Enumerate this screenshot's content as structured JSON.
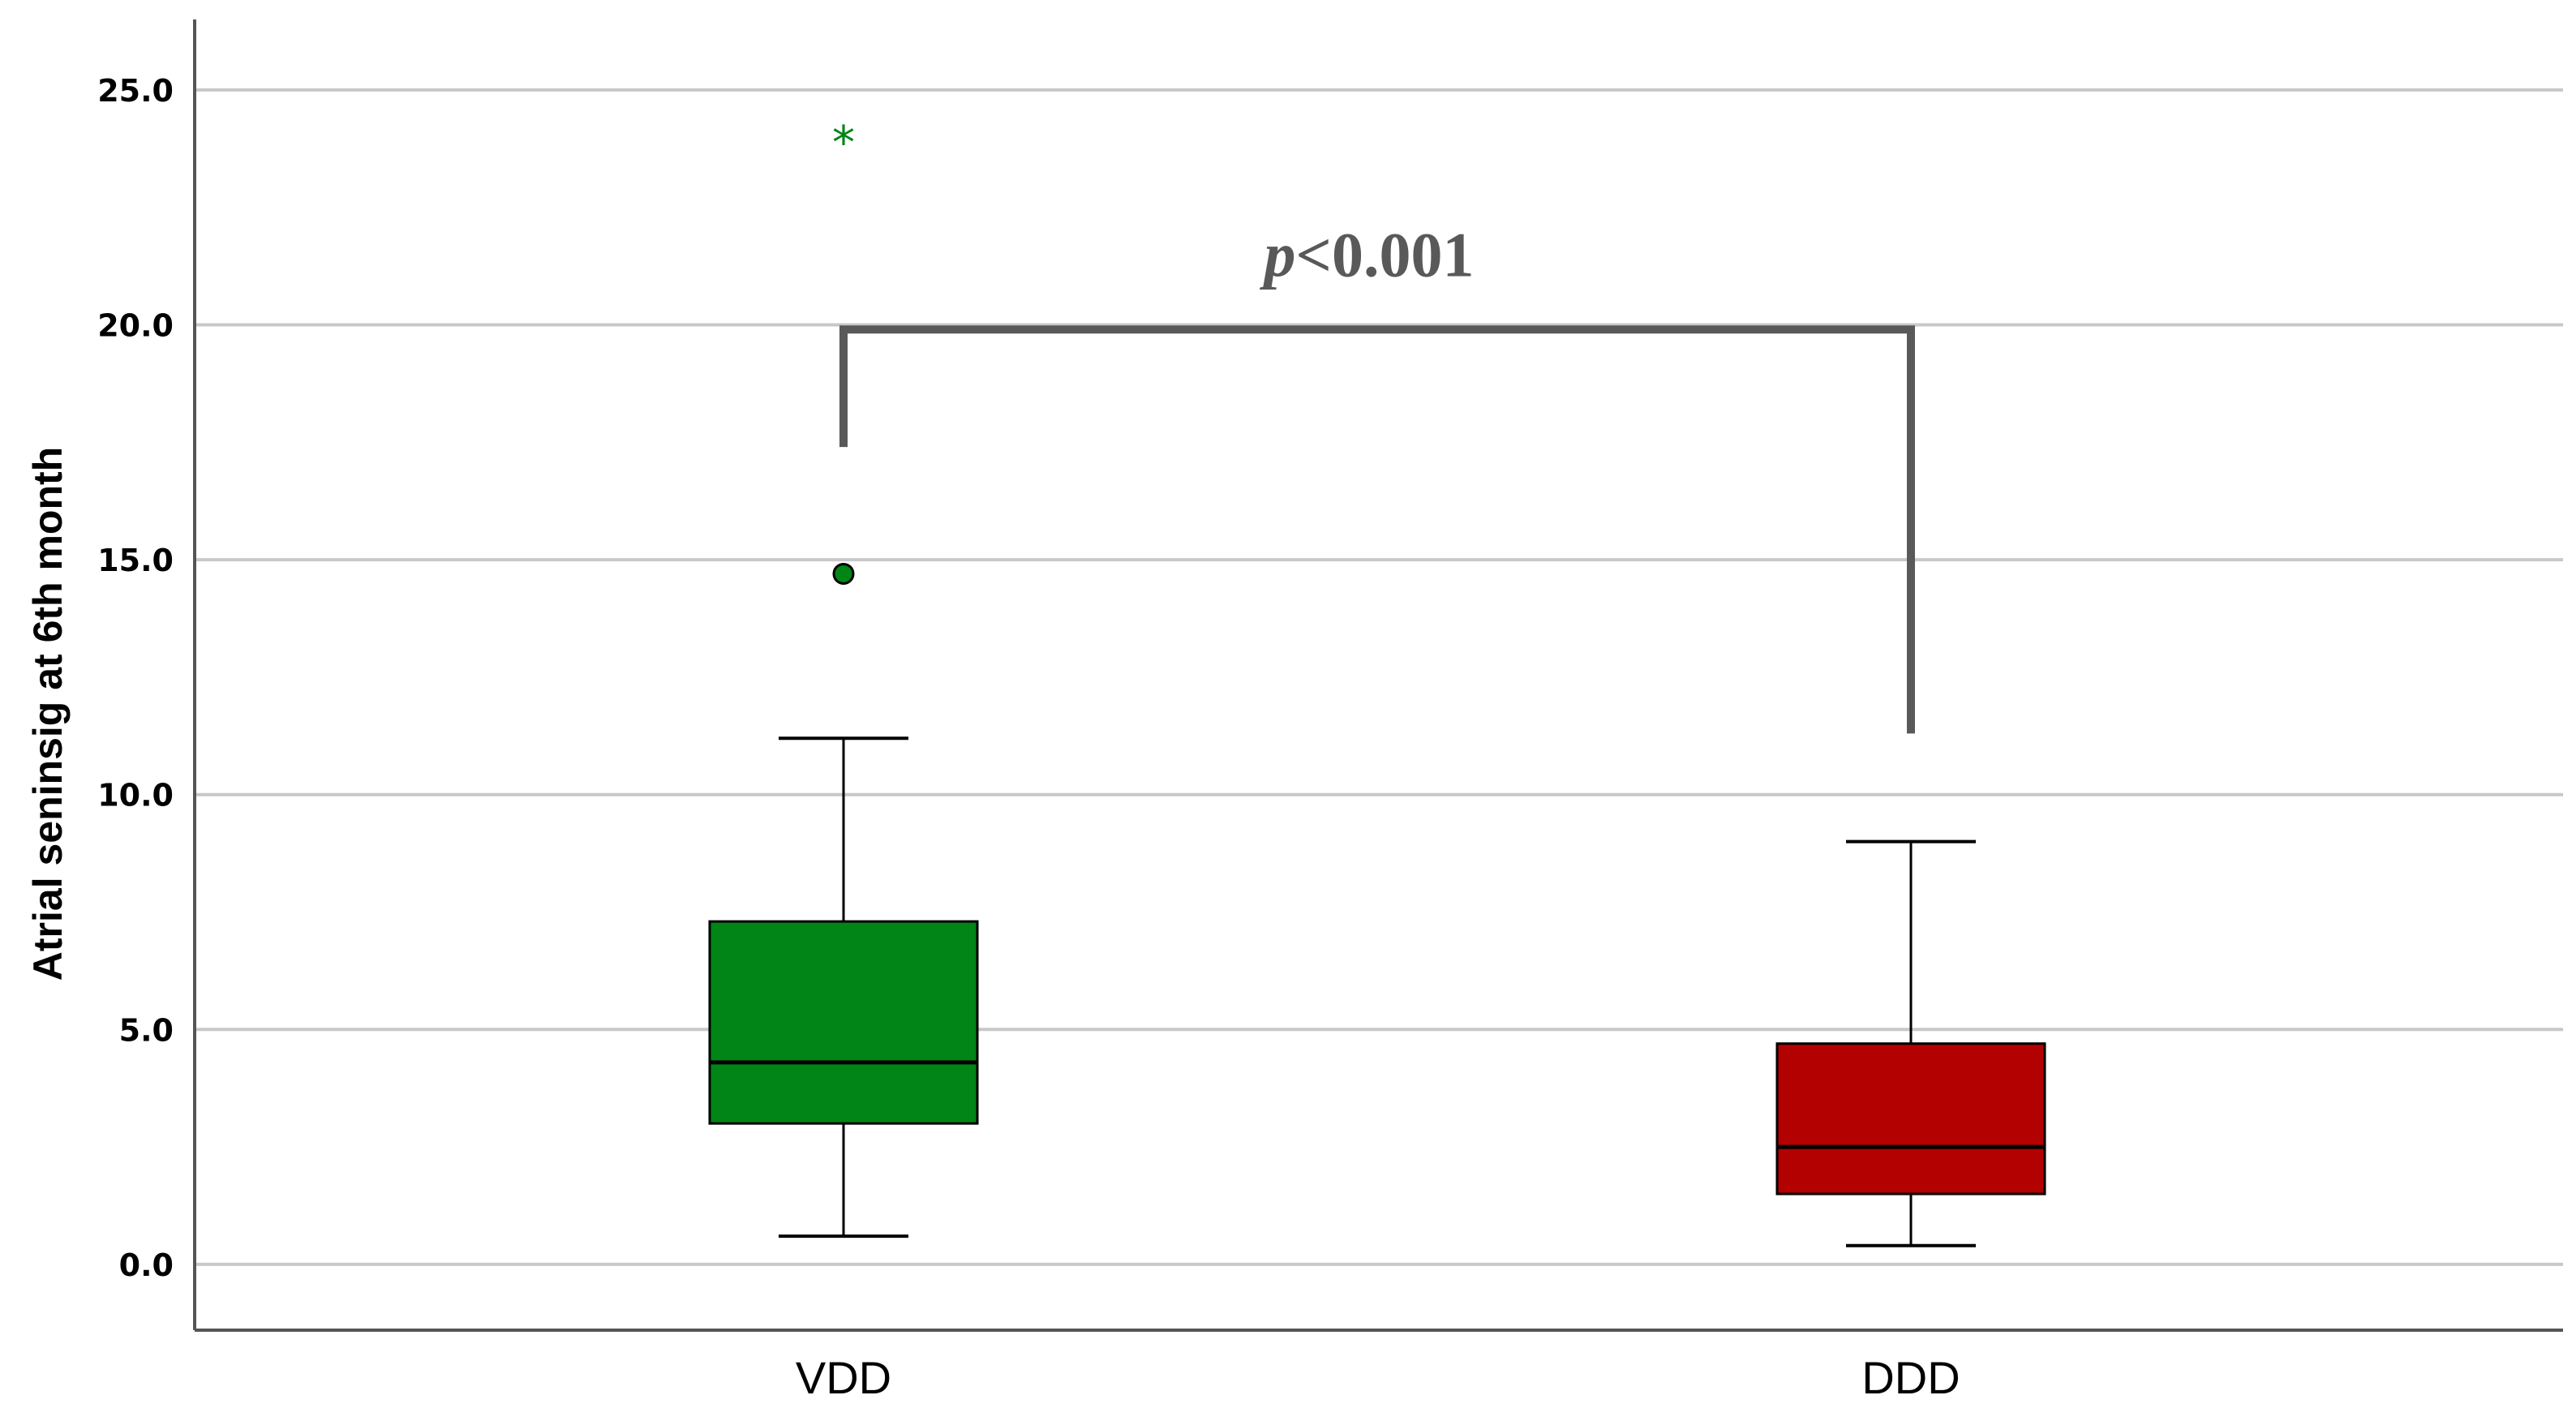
{
  "chart_data": {
    "type": "box",
    "ylabel": "Atrial seninsig at 6th month",
    "xlabel": "",
    "ylim": [
      -1.4,
      26.5
    ],
    "yticks": [
      "0.0",
      "5.0",
      "10.0",
      "15.0",
      "20.0",
      "25.0"
    ],
    "yticks_values": [
      0,
      5,
      10,
      15,
      20,
      25
    ],
    "grid": true,
    "categories": [
      "VDD",
      "DDD"
    ],
    "boxes": [
      {
        "category": "VDD",
        "color": "#008516",
        "whisker_low": 0.6,
        "q1": 3.0,
        "median": 4.3,
        "q3": 7.3,
        "whisker_high": 11.2,
        "outliers": [
          14.7
        ],
        "extremes": [
          24.0
        ]
      },
      {
        "category": "DDD",
        "color": "#b30000",
        "whisker_low": 0.4,
        "q1": 1.5,
        "median": 2.5,
        "q3": 4.7,
        "whisker_high": 9.0,
        "outliers": [],
        "extremes": []
      }
    ],
    "annotation": {
      "text_italic": "p",
      "text": "<0.001",
      "bracket_top": 19.9,
      "bracket_left_bottom": 17.4,
      "bracket_right_bottom": 11.3,
      "color": "#595959"
    },
    "colors": {
      "grid": "#c8c8c8",
      "axis": "#555555",
      "median": "#000000"
    }
  }
}
